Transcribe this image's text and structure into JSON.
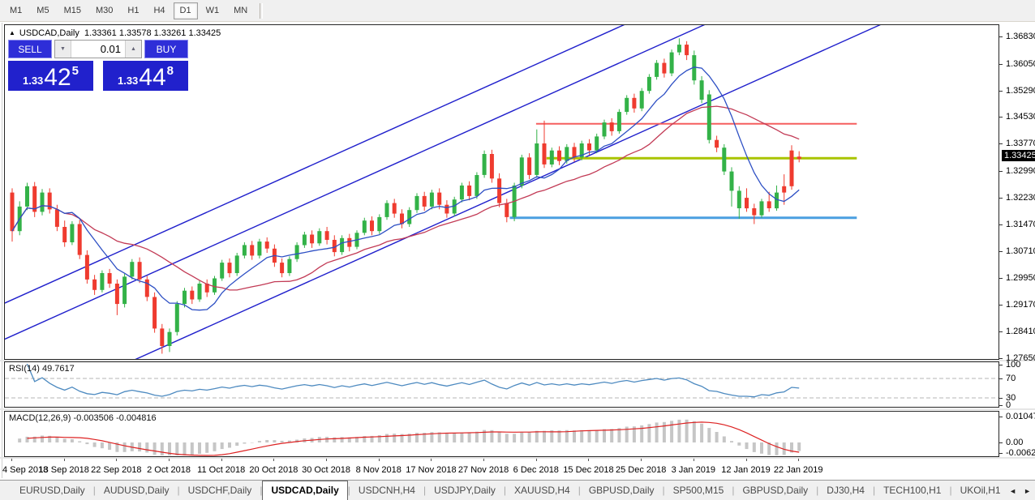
{
  "toolbar": {
    "timeframes": [
      "M1",
      "M5",
      "M15",
      "M30",
      "H1",
      "H4",
      "D1",
      "W1",
      "MN"
    ],
    "active": "D1"
  },
  "chart": {
    "title_symbol": "USDCAD,Daily",
    "title_ohlc": "1.33361 1.33578 1.33261 1.33425",
    "trade_panel": {
      "sell_label": "SELL",
      "buy_label": "BUY",
      "volume": "0.01",
      "sell_price_small": "1.33",
      "sell_price_big": "42",
      "sell_price_sup": "5",
      "buy_price_small": "1.33",
      "buy_price_big": "44",
      "buy_price_sup": "8"
    }
  },
  "price_axis": {
    "ticks": [
      "1.36830",
      "1.36050",
      "1.35290",
      "1.34530",
      "1.33770",
      "1.32990",
      "1.32230",
      "1.31470",
      "1.30710",
      "1.29950",
      "1.29170",
      "1.28410",
      "1.27650"
    ],
    "current": "1.33425"
  },
  "rsi": {
    "label": "RSI(14) 49.7617",
    "levels": [
      "100",
      "70",
      "30",
      "0"
    ]
  },
  "macd": {
    "label": "MACD(12,26,9) -0.003506 -0.004816",
    "levels": [
      "0.010474",
      "0.00",
      "-0.006218"
    ]
  },
  "tabs": {
    "items": [
      "EURUSD,Daily",
      "AUDUSD,Daily",
      "USDCHF,Daily",
      "USDCAD,Daily",
      "USDCNH,H4",
      "USDJPY,Daily",
      "XAUUSD,H4",
      "GBPUSD,Daily",
      "SP500,M15",
      "GBPUSD,Daily",
      "DJ30,H4",
      "TECH100,H1",
      "UKOil,H1"
    ],
    "active": "USDCAD,Daily"
  },
  "icons": {
    "collapse": "▲",
    "triangle_down": "▼",
    "triangle_up": "▲",
    "scroll_left": "◄",
    "scroll_right": "►"
  },
  "colors": {
    "bull": "#33b248",
    "bear": "#ef3b2f",
    "ma_fast": "#2d4fc4",
    "ma_slow": "#c23a55",
    "channel": "#2020cc",
    "hline_red": "#f55f5f",
    "hline_yellow": "#a9c400",
    "hline_blue": "#4a9fe0",
    "rsi": "#4d8ac0",
    "grid_dash": "#b5b5b5",
    "macd_hist": "#c6c6c6",
    "macd_signal": "#dd2222",
    "tag_bg": "#000000"
  },
  "chart_data": {
    "type": "candlestick",
    "symbol": "USDCAD",
    "timeframe": "Daily",
    "ohlc_display": {
      "open": "1.33361",
      "high": "1.33578",
      "low": "1.33261",
      "close": "1.33425"
    },
    "y_axis": {
      "min": 1.2765,
      "max": 1.3683,
      "tick_step": 0.0076
    },
    "x_axis": {
      "tick_labels": [
        "4 Sep 2018",
        "13 Sep 2018",
        "22 Sep 2018",
        "2 Oct 2018",
        "11 Oct 2018",
        "20 Oct 2018",
        "30 Oct 2018",
        "8 Nov 2018",
        "17 Nov 2018",
        "27 Nov 2018",
        "6 Dec 2018",
        "15 Dec 2018",
        "25 Dec 2018",
        "3 Jan 2019",
        "12 Jan 2019",
        "22 Jan 2019"
      ],
      "bars_per_tick": 7
    },
    "candles": [
      [
        1.324,
        1.3252,
        1.31,
        1.313,
        "r"
      ],
      [
        1.313,
        1.3215,
        1.3118,
        1.32,
        "g"
      ],
      [
        1.32,
        1.3268,
        1.319,
        1.3258,
        "g"
      ],
      [
        1.3258,
        1.327,
        1.317,
        1.3185,
        "r"
      ],
      [
        1.3185,
        1.325,
        1.3175,
        1.324,
        "g"
      ],
      [
        1.324,
        1.3252,
        1.318,
        1.3192,
        "r"
      ],
      [
        1.3192,
        1.3205,
        1.313,
        1.3142,
        "r"
      ],
      [
        1.3142,
        1.316,
        1.3085,
        1.3098,
        "r"
      ],
      [
        1.3098,
        1.3158,
        1.309,
        1.315,
        "g"
      ],
      [
        1.315,
        1.3162,
        1.305,
        1.3062,
        "r"
      ],
      [
        1.3062,
        1.3075,
        1.298,
        1.2992,
        "r"
      ],
      [
        1.2992,
        1.3005,
        1.2948,
        1.2962,
        "r"
      ],
      [
        1.2962,
        1.3018,
        1.2955,
        1.301,
        "g"
      ],
      [
        1.301,
        1.3022,
        1.2968,
        1.298,
        "r"
      ],
      [
        1.298,
        1.2992,
        1.289,
        1.2922,
        "r"
      ],
      [
        1.2922,
        1.3008,
        1.2912,
        1.3,
        "g"
      ],
      [
        1.3,
        1.305,
        1.2992,
        1.3042,
        "g"
      ],
      [
        1.3042,
        1.3055,
        1.2982,
        1.2992,
        "r"
      ],
      [
        1.2992,
        1.3002,
        1.293,
        1.2942,
        "r"
      ],
      [
        1.2942,
        1.2955,
        1.284,
        1.2852,
        "r"
      ],
      [
        1.2852,
        1.2865,
        1.278,
        1.2802,
        "r"
      ],
      [
        1.2802,
        1.2852,
        1.2785,
        1.2842,
        "g"
      ],
      [
        1.2842,
        1.293,
        1.2832,
        1.2922,
        "g"
      ],
      [
        1.2922,
        1.2968,
        1.2912,
        1.296,
        "g"
      ],
      [
        1.296,
        1.2972,
        1.2922,
        1.2935,
        "r"
      ],
      [
        1.2935,
        1.2988,
        1.2928,
        1.298,
        "g"
      ],
      [
        1.298,
        1.2992,
        1.2942,
        1.2955,
        "r"
      ],
      [
        1.2955,
        1.3002,
        1.2948,
        1.2995,
        "g"
      ],
      [
        1.2995,
        1.3048,
        1.2988,
        1.304,
        "g"
      ],
      [
        1.304,
        1.3052,
        1.2998,
        1.301,
        "r"
      ],
      [
        1.301,
        1.3068,
        1.3002,
        1.306,
        "g"
      ],
      [
        1.306,
        1.3098,
        1.3052,
        1.309,
        "g"
      ],
      [
        1.309,
        1.3102,
        1.3048,
        1.306,
        "r"
      ],
      [
        1.306,
        1.3108,
        1.3052,
        1.31,
        "g"
      ],
      [
        1.31,
        1.3112,
        1.3068,
        1.308,
        "r"
      ],
      [
        1.308,
        1.3092,
        1.3028,
        1.304,
        "r"
      ],
      [
        1.304,
        1.3052,
        1.2998,
        1.301,
        "r"
      ],
      [
        1.301,
        1.3058,
        1.3002,
        1.305,
        "g"
      ],
      [
        1.305,
        1.3098,
        1.3042,
        1.309,
        "g"
      ],
      [
        1.309,
        1.3128,
        1.3082,
        1.312,
        "g"
      ],
      [
        1.312,
        1.3132,
        1.3082,
        1.3095,
        "r"
      ],
      [
        1.3095,
        1.3138,
        1.3088,
        1.313,
        "g"
      ],
      [
        1.313,
        1.3142,
        1.3092,
        1.3105,
        "r"
      ],
      [
        1.3105,
        1.3118,
        1.3058,
        1.307,
        "r"
      ],
      [
        1.307,
        1.3118,
        1.3062,
        1.311,
        "g"
      ],
      [
        1.311,
        1.3122,
        1.3072,
        1.3085,
        "r"
      ],
      [
        1.3085,
        1.3132,
        1.3078,
        1.3125,
        "g"
      ],
      [
        1.3125,
        1.3168,
        1.3118,
        1.316,
        "g"
      ],
      [
        1.316,
        1.3172,
        1.3118,
        1.313,
        "r"
      ],
      [
        1.313,
        1.3178,
        1.3122,
        1.317,
        "g"
      ],
      [
        1.317,
        1.3218,
        1.3162,
        1.321,
        "g"
      ],
      [
        1.321,
        1.3222,
        1.3168,
        1.318,
        "r"
      ],
      [
        1.318,
        1.3192,
        1.3138,
        1.315,
        "r"
      ],
      [
        1.315,
        1.3198,
        1.3142,
        1.319,
        "g"
      ],
      [
        1.319,
        1.3238,
        1.3182,
        1.323,
        "g"
      ],
      [
        1.323,
        1.3242,
        1.3188,
        1.32,
        "r"
      ],
      [
        1.32,
        1.3248,
        1.3192,
        1.324,
        "g"
      ],
      [
        1.324,
        1.3252,
        1.3192,
        1.3205,
        "r"
      ],
      [
        1.3205,
        1.3218,
        1.3168,
        1.318,
        "r"
      ],
      [
        1.318,
        1.3228,
        1.3172,
        1.322,
        "g"
      ],
      [
        1.322,
        1.3268,
        1.3212,
        1.326,
        "g"
      ],
      [
        1.326,
        1.3272,
        1.3218,
        1.323,
        "r"
      ],
      [
        1.323,
        1.3298,
        1.3222,
        1.329,
        "g"
      ],
      [
        1.329,
        1.336,
        1.3282,
        1.335,
        "g"
      ],
      [
        1.335,
        1.3362,
        1.3268,
        1.328,
        "r"
      ],
      [
        1.328,
        1.3295,
        1.3198,
        1.321,
        "r"
      ],
      [
        1.321,
        1.3222,
        1.3155,
        1.317,
        "r"
      ],
      [
        1.317,
        1.3268,
        1.3158,
        1.326,
        "g"
      ],
      [
        1.326,
        1.3348,
        1.3252,
        1.334,
        "g"
      ],
      [
        1.334,
        1.3352,
        1.3278,
        1.329,
        "r"
      ],
      [
        1.329,
        1.342,
        1.3282,
        1.338,
        "g"
      ],
      [
        1.338,
        1.3445,
        1.331,
        1.332,
        "r"
      ],
      [
        1.332,
        1.3368,
        1.3312,
        1.336,
        "g"
      ],
      [
        1.336,
        1.3372,
        1.3318,
        1.333,
        "r"
      ],
      [
        1.333,
        1.3378,
        1.3322,
        1.337,
        "g"
      ],
      [
        1.337,
        1.3382,
        1.3328,
        1.334,
        "r"
      ],
      [
        1.334,
        1.3388,
        1.3332,
        1.338,
        "g"
      ],
      [
        1.338,
        1.3392,
        1.3348,
        1.336,
        "r"
      ],
      [
        1.336,
        1.3408,
        1.3352,
        1.34,
        "g"
      ],
      [
        1.34,
        1.3448,
        1.3392,
        1.344,
        "g"
      ],
      [
        1.344,
        1.3452,
        1.3402,
        1.3415,
        "r"
      ],
      [
        1.3415,
        1.3478,
        1.3408,
        1.347,
        "g"
      ],
      [
        1.347,
        1.3518,
        1.3462,
        1.351,
        "g"
      ],
      [
        1.351,
        1.3522,
        1.3468,
        1.348,
        "r"
      ],
      [
        1.348,
        1.3538,
        1.3472,
        1.353,
        "g"
      ],
      [
        1.353,
        1.3578,
        1.3522,
        1.357,
        "g"
      ],
      [
        1.357,
        1.3618,
        1.3562,
        1.361,
        "g"
      ],
      [
        1.361,
        1.3622,
        1.3568,
        1.358,
        "r"
      ],
      [
        1.358,
        1.3648,
        1.3572,
        1.364,
        "g"
      ],
      [
        1.364,
        1.368,
        1.3632,
        1.3662,
        "g"
      ],
      [
        1.3662,
        1.3672,
        1.3618,
        1.3632,
        "r"
      ],
      [
        1.3632,
        1.3645,
        1.3548,
        1.356,
        "g"
      ],
      [
        1.356,
        1.3572,
        1.3495,
        1.3505,
        "g"
      ],
      [
        1.352,
        1.3532,
        1.338,
        1.339,
        "g"
      ],
      [
        1.339,
        1.3402,
        1.3355,
        1.3368,
        "r"
      ],
      [
        1.3368,
        1.3378,
        1.329,
        1.33,
        "g"
      ],
      [
        1.33,
        1.3312,
        1.32,
        1.3245,
        "g"
      ],
      [
        1.3245,
        1.3258,
        1.3165,
        1.3195,
        "g"
      ],
      [
        1.3225,
        1.3252,
        1.3185,
        1.3195,
        "r"
      ],
      [
        1.3195,
        1.3208,
        1.315,
        1.3175,
        "r"
      ],
      [
        1.3175,
        1.3222,
        1.3168,
        1.3215,
        "g"
      ],
      [
        1.3215,
        1.3242,
        1.3185,
        1.3195,
        "r"
      ],
      [
        1.3195,
        1.326,
        1.3188,
        1.324,
        "g"
      ],
      [
        1.324,
        1.3292,
        1.3205,
        1.3258,
        "r"
      ],
      [
        1.3258,
        1.3375,
        1.3248,
        1.336,
        "r"
      ],
      [
        1.33361,
        1.33578,
        1.33261,
        1.33425,
        "r"
      ]
    ],
    "overlays": {
      "ma_fast": {
        "type": "sma",
        "period": 8
      },
      "ma_slow": {
        "type": "sma",
        "period": 21
      },
      "hlines": [
        {
          "price": 1.3436,
          "from_bar": 69.9,
          "to_bar": 112.7,
          "color_key": "hline_red",
          "width": 2
        },
        {
          "price": 1.3338,
          "from_bar": 71.3,
          "to_bar": 112.7,
          "color_key": "hline_yellow",
          "width": 3
        },
        {
          "price": 1.3168,
          "from_bar": 66.4,
          "to_bar": 112.7,
          "color_key": "hline_blue",
          "width": 3
        }
      ],
      "trendlines": [
        {
          "bar1": -2,
          "price1": 1.28119,
          "bar2": 130,
          "price2": 1.40804
        },
        {
          "bar1": -2,
          "price1": 1.29149,
          "bar2": 130,
          "price2": 1.41834
        },
        {
          "bar1": -2,
          "price1": 1.25866,
          "bar2": 130,
          "price2": 1.38551
        }
      ]
    },
    "indicators": {
      "rsi": {
        "period": 14,
        "current": 49.7617,
        "levels": [
          70,
          30
        ]
      },
      "macd": {
        "fast": 12,
        "slow": 26,
        "signal": 9,
        "current_main": -0.003506,
        "current_signal": -0.004816
      }
    }
  }
}
